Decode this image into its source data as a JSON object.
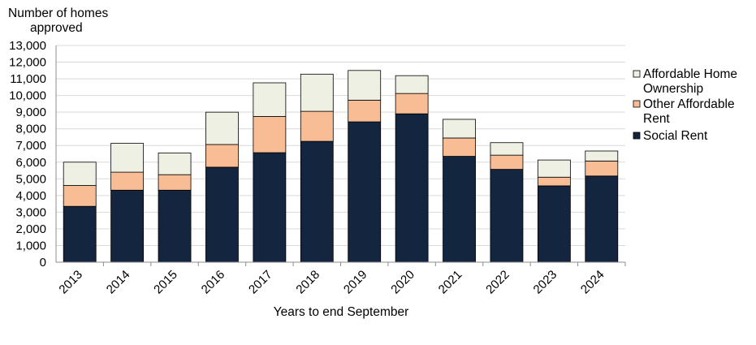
{
  "chart_data": {
    "type": "bar",
    "stacked": true,
    "ylabel": [
      "Number of homes",
      "approved"
    ],
    "xlabel": "Years to end September",
    "ylim": [
      0,
      13000
    ],
    "ytick_step": 1000,
    "grid": true,
    "legend_position": "right",
    "categories": [
      "2013",
      "2014",
      "2015",
      "2016",
      "2017",
      "2018",
      "2019",
      "2020",
      "2021",
      "2022",
      "2023",
      "2024"
    ],
    "series": [
      {
        "name": "Social Rent",
        "color": "#14253f",
        "values": [
          3350,
          4320,
          4320,
          5700,
          6570,
          7250,
          8420,
          8900,
          6350,
          5570,
          4580,
          5170
        ]
      },
      {
        "name": "Other Affordable Rent",
        "color": "#f9bd95",
        "values": [
          1250,
          1080,
          930,
          1360,
          2170,
          1800,
          1300,
          1220,
          1100,
          850,
          520,
          900
        ]
      },
      {
        "name": "Affordable Home Ownership",
        "color": "#edf0e2",
        "values": [
          1400,
          1730,
          1300,
          1940,
          2020,
          2230,
          1780,
          1070,
          1120,
          750,
          1030,
          600
        ]
      }
    ],
    "legend": [
      {
        "lines": [
          "Affordable Home",
          "Ownership"
        ]
      },
      {
        "lines": [
          "Other Affordable",
          "Rent"
        ]
      },
      {
        "lines": [
          "Social Rent"
        ]
      }
    ]
  }
}
